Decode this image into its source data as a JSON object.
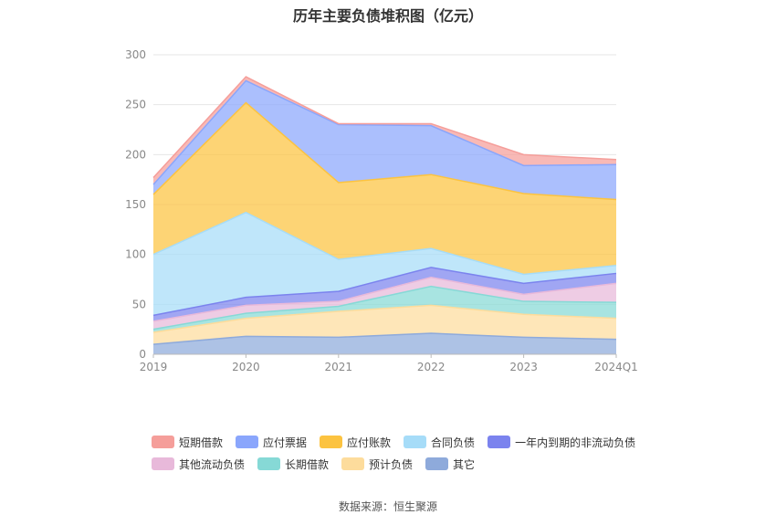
{
  "chart_data": {
    "type": "area",
    "stacked": true,
    "title": "历年主要负债堆积图（亿元）",
    "categories": [
      "2019",
      "2020",
      "2021",
      "2022",
      "2023",
      "2024Q1"
    ],
    "ylim": [
      0,
      300
    ],
    "yticks": [
      0,
      50,
      100,
      150,
      200,
      250,
      300
    ],
    "grid": true,
    "legend_position": "bottom",
    "series": [
      {
        "name": "其它",
        "color": "#8eaadb",
        "values": [
          10,
          18,
          17,
          21,
          17,
          15
        ]
      },
      {
        "name": "预计负债",
        "color": "#fddc9c",
        "values": [
          12,
          18,
          26,
          28,
          23,
          21
        ]
      },
      {
        "name": "长期借款",
        "color": "#86d9d6",
        "values": [
          3,
          5,
          5,
          19,
          13,
          16
        ]
      },
      {
        "name": "其他流动负债",
        "color": "#e8b9da",
        "values": [
          8,
          8,
          5,
          9,
          7,
          19
        ]
      },
      {
        "name": "一年内到期的非流动负债",
        "color": "#7b83ee",
        "values": [
          6,
          8,
          10,
          10,
          11,
          10
        ]
      },
      {
        "name": "合同负债",
        "color": "#a6dcf8",
        "values": [
          61,
          85,
          32,
          19,
          9,
          8
        ]
      },
      {
        "name": "应付账款",
        "color": "#fcc340",
        "values": [
          60,
          110,
          77,
          74,
          81,
          66
        ]
      },
      {
        "name": "应付票据",
        "color": "#8aa6fc",
        "values": [
          10,
          22,
          58,
          49,
          28,
          35
        ]
      },
      {
        "name": "短期借款",
        "color": "#f59e9a",
        "values": [
          7,
          4,
          1,
          2,
          11,
          5
        ]
      }
    ]
  },
  "legend_order": [
    "短期借款",
    "应付票据",
    "应付账款",
    "合同负债",
    "一年内到期的非流动负债",
    "其他流动负债",
    "长期借款",
    "预计负债",
    "其它"
  ],
  "legend_rows": [
    [
      "短期借款",
      "应付票据",
      "应付账款",
      "合同负债",
      "一年内到期的非流动负债"
    ],
    [
      "其他流动负债",
      "长期借款",
      "预计负债",
      "其它"
    ]
  ],
  "source": "数据来源：恒生聚源"
}
